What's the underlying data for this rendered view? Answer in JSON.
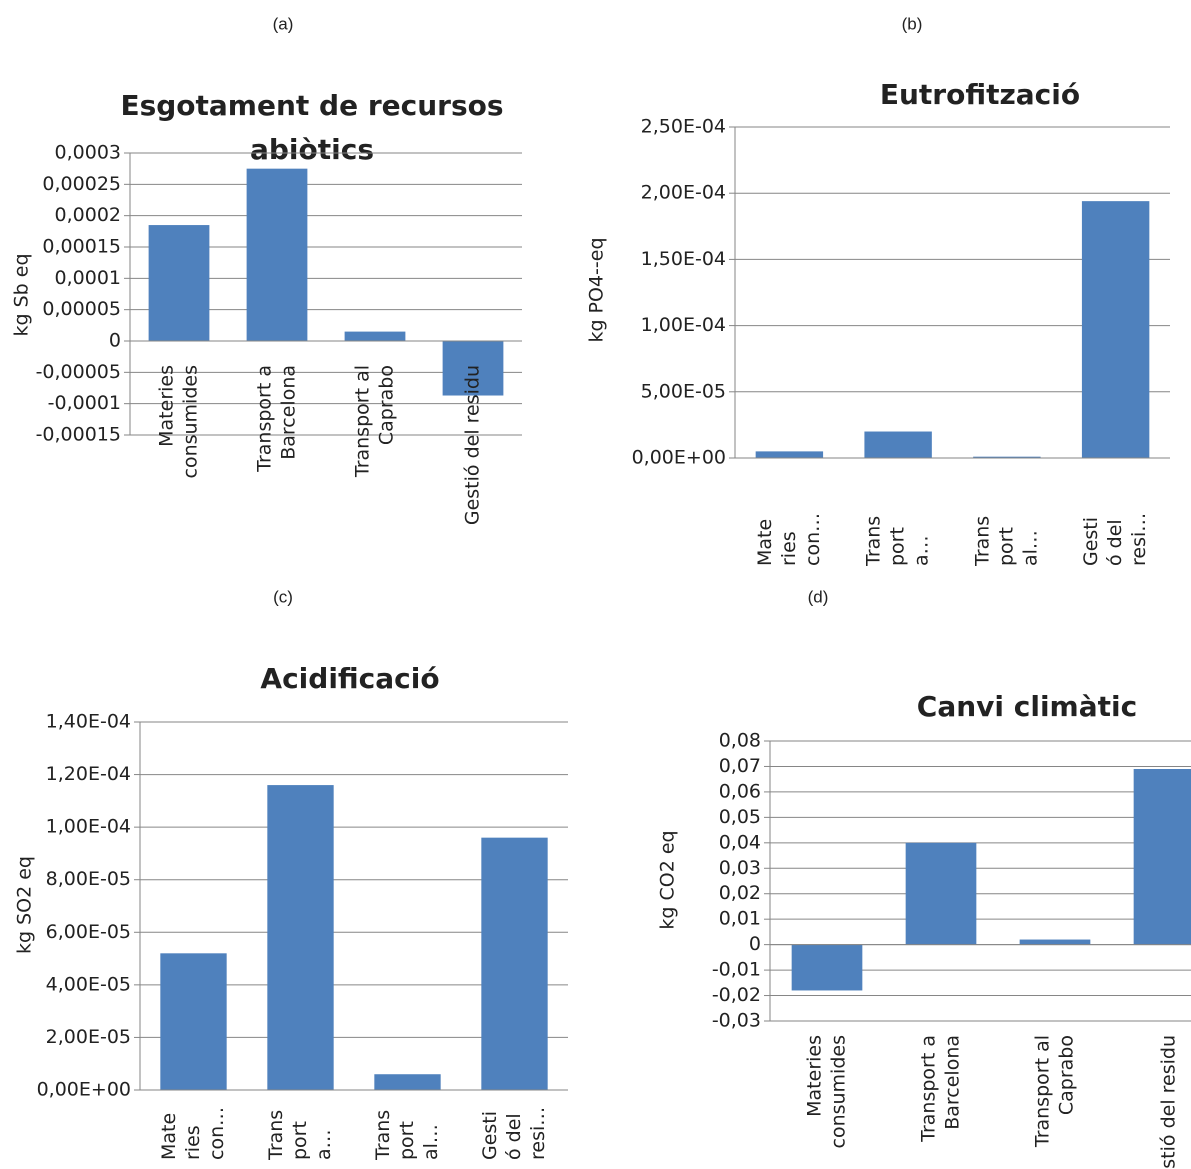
{
  "chart_data": [
    {
      "type": "bar",
      "panel": "(a)",
      "title": [
        "Esgotament de recursos",
        "abiòtics"
      ],
      "ylabel": "kg Sb eq",
      "categories": [
        [
          "Materies",
          "consumides"
        ],
        [
          "Transport a",
          "Barcelona"
        ],
        [
          "Transport al",
          "Caprabo"
        ],
        [
          "Gestió del residu"
        ]
      ],
      "values": [
        0.000185,
        0.000275,
        1.5e-05,
        -8.7e-05
      ],
      "color": "#4f81bd",
      "ylim": [
        -0.00015,
        0.0003
      ],
      "yticks": [
        {
          "value": -0.00015,
          "label": "-0,00015"
        },
        {
          "value": -0.0001,
          "label": "-0,0001"
        },
        {
          "value": -5e-05,
          "label": "-0,00005"
        },
        0,
        {
          "value": 5e-05,
          "label": "0,00005"
        },
        {
          "value": 0.0001,
          "label": "0,0001"
        },
        {
          "value": 0.00015,
          "label": "0,00015"
        },
        {
          "value": 0.0002,
          "label": "0,0002"
        },
        {
          "value": 0.00025,
          "label": "0,00025"
        },
        {
          "value": 0.0003,
          "label": "0,0003"
        }
      ],
      "grid": true
    },
    {
      "type": "bar",
      "panel": "(b)",
      "title": [
        "Eutrofització"
      ],
      "ylabel": "kg PO4--eq",
      "categories": [
        [
          "Mate",
          "ries",
          "con…"
        ],
        [
          "Trans",
          "port",
          "a…"
        ],
        [
          "Trans",
          "port",
          "al…"
        ],
        [
          "Gesti",
          "ó del",
          "resi…"
        ]
      ],
      "values": [
        5e-06,
        2e-05,
        1e-06,
        0.000194
      ],
      "color": "#4f81bd",
      "ylim": [
        0,
        0.00025
      ],
      "yticks": [
        {
          "value": 0,
          "label": "0,00E+00"
        },
        {
          "value": 5e-05,
          "label": "5,00E-05"
        },
        {
          "value": 0.0001,
          "label": "1,00E-04"
        },
        {
          "value": 0.00015,
          "label": "1,50E-04"
        },
        {
          "value": 0.0002,
          "label": "2,00E-04"
        },
        {
          "value": 0.00025,
          "label": "2,50E-04"
        }
      ],
      "grid": true
    },
    {
      "type": "bar",
      "panel": "(c)",
      "title": [
        "Acidificació"
      ],
      "ylabel": "kg SO2 eq",
      "categories": [
        [
          "Mate",
          "ries",
          "con…"
        ],
        [
          "Trans",
          "port",
          "a…"
        ],
        [
          "Trans",
          "port",
          "al…"
        ],
        [
          "Gesti",
          "ó del",
          "resi…"
        ]
      ],
      "values": [
        5.2e-05,
        0.000116,
        6e-06,
        9.6e-05
      ],
      "color": "#4f81bd",
      "ylim": [
        0,
        0.00014
      ],
      "yticks": [
        {
          "value": 0,
          "label": "0,00E+00"
        },
        {
          "value": 2e-05,
          "label": "2,00E-05"
        },
        {
          "value": 4e-05,
          "label": "4,00E-05"
        },
        {
          "value": 6e-05,
          "label": "6,00E-05"
        },
        {
          "value": 8e-05,
          "label": "8,00E-05"
        },
        {
          "value": 0.0001,
          "label": "1,00E-04"
        },
        {
          "value": 0.00012,
          "label": "1,20E-04"
        },
        {
          "value": 0.00014,
          "label": "1,40E-04"
        }
      ],
      "grid": true
    },
    {
      "type": "bar",
      "panel": "(d)",
      "title": [
        "Canvi climàtic"
      ],
      "ylabel": "kg CO2 eq",
      "categories": [
        [
          "Materies",
          "consumides"
        ],
        [
          "Transport a",
          "Barcelona"
        ],
        [
          "Transport al",
          "Caprabo"
        ],
        [
          "Gestió del residu"
        ]
      ],
      "values": [
        -0.018,
        0.04,
        0.002,
        0.069
      ],
      "color": "#4f81bd",
      "ylim": [
        -0.03,
        0.08
      ],
      "yticks": [
        {
          "value": -0.03,
          "label": "-0,03"
        },
        {
          "value": -0.02,
          "label": "-0,02"
        },
        {
          "value": -0.01,
          "label": "-0,01"
        },
        0,
        {
          "value": 0.01,
          "label": "0,01"
        },
        {
          "value": 0.02,
          "label": "0,02"
        },
        {
          "value": 0.03,
          "label": "0,03"
        },
        {
          "value": 0.04,
          "label": "0,04"
        },
        {
          "value": 0.05,
          "label": "0,05"
        },
        {
          "value": 0.06,
          "label": "0,06"
        },
        {
          "value": 0.07,
          "label": "0,07"
        },
        {
          "value": 0.08,
          "label": "0,08"
        }
      ],
      "grid": true
    }
  ]
}
